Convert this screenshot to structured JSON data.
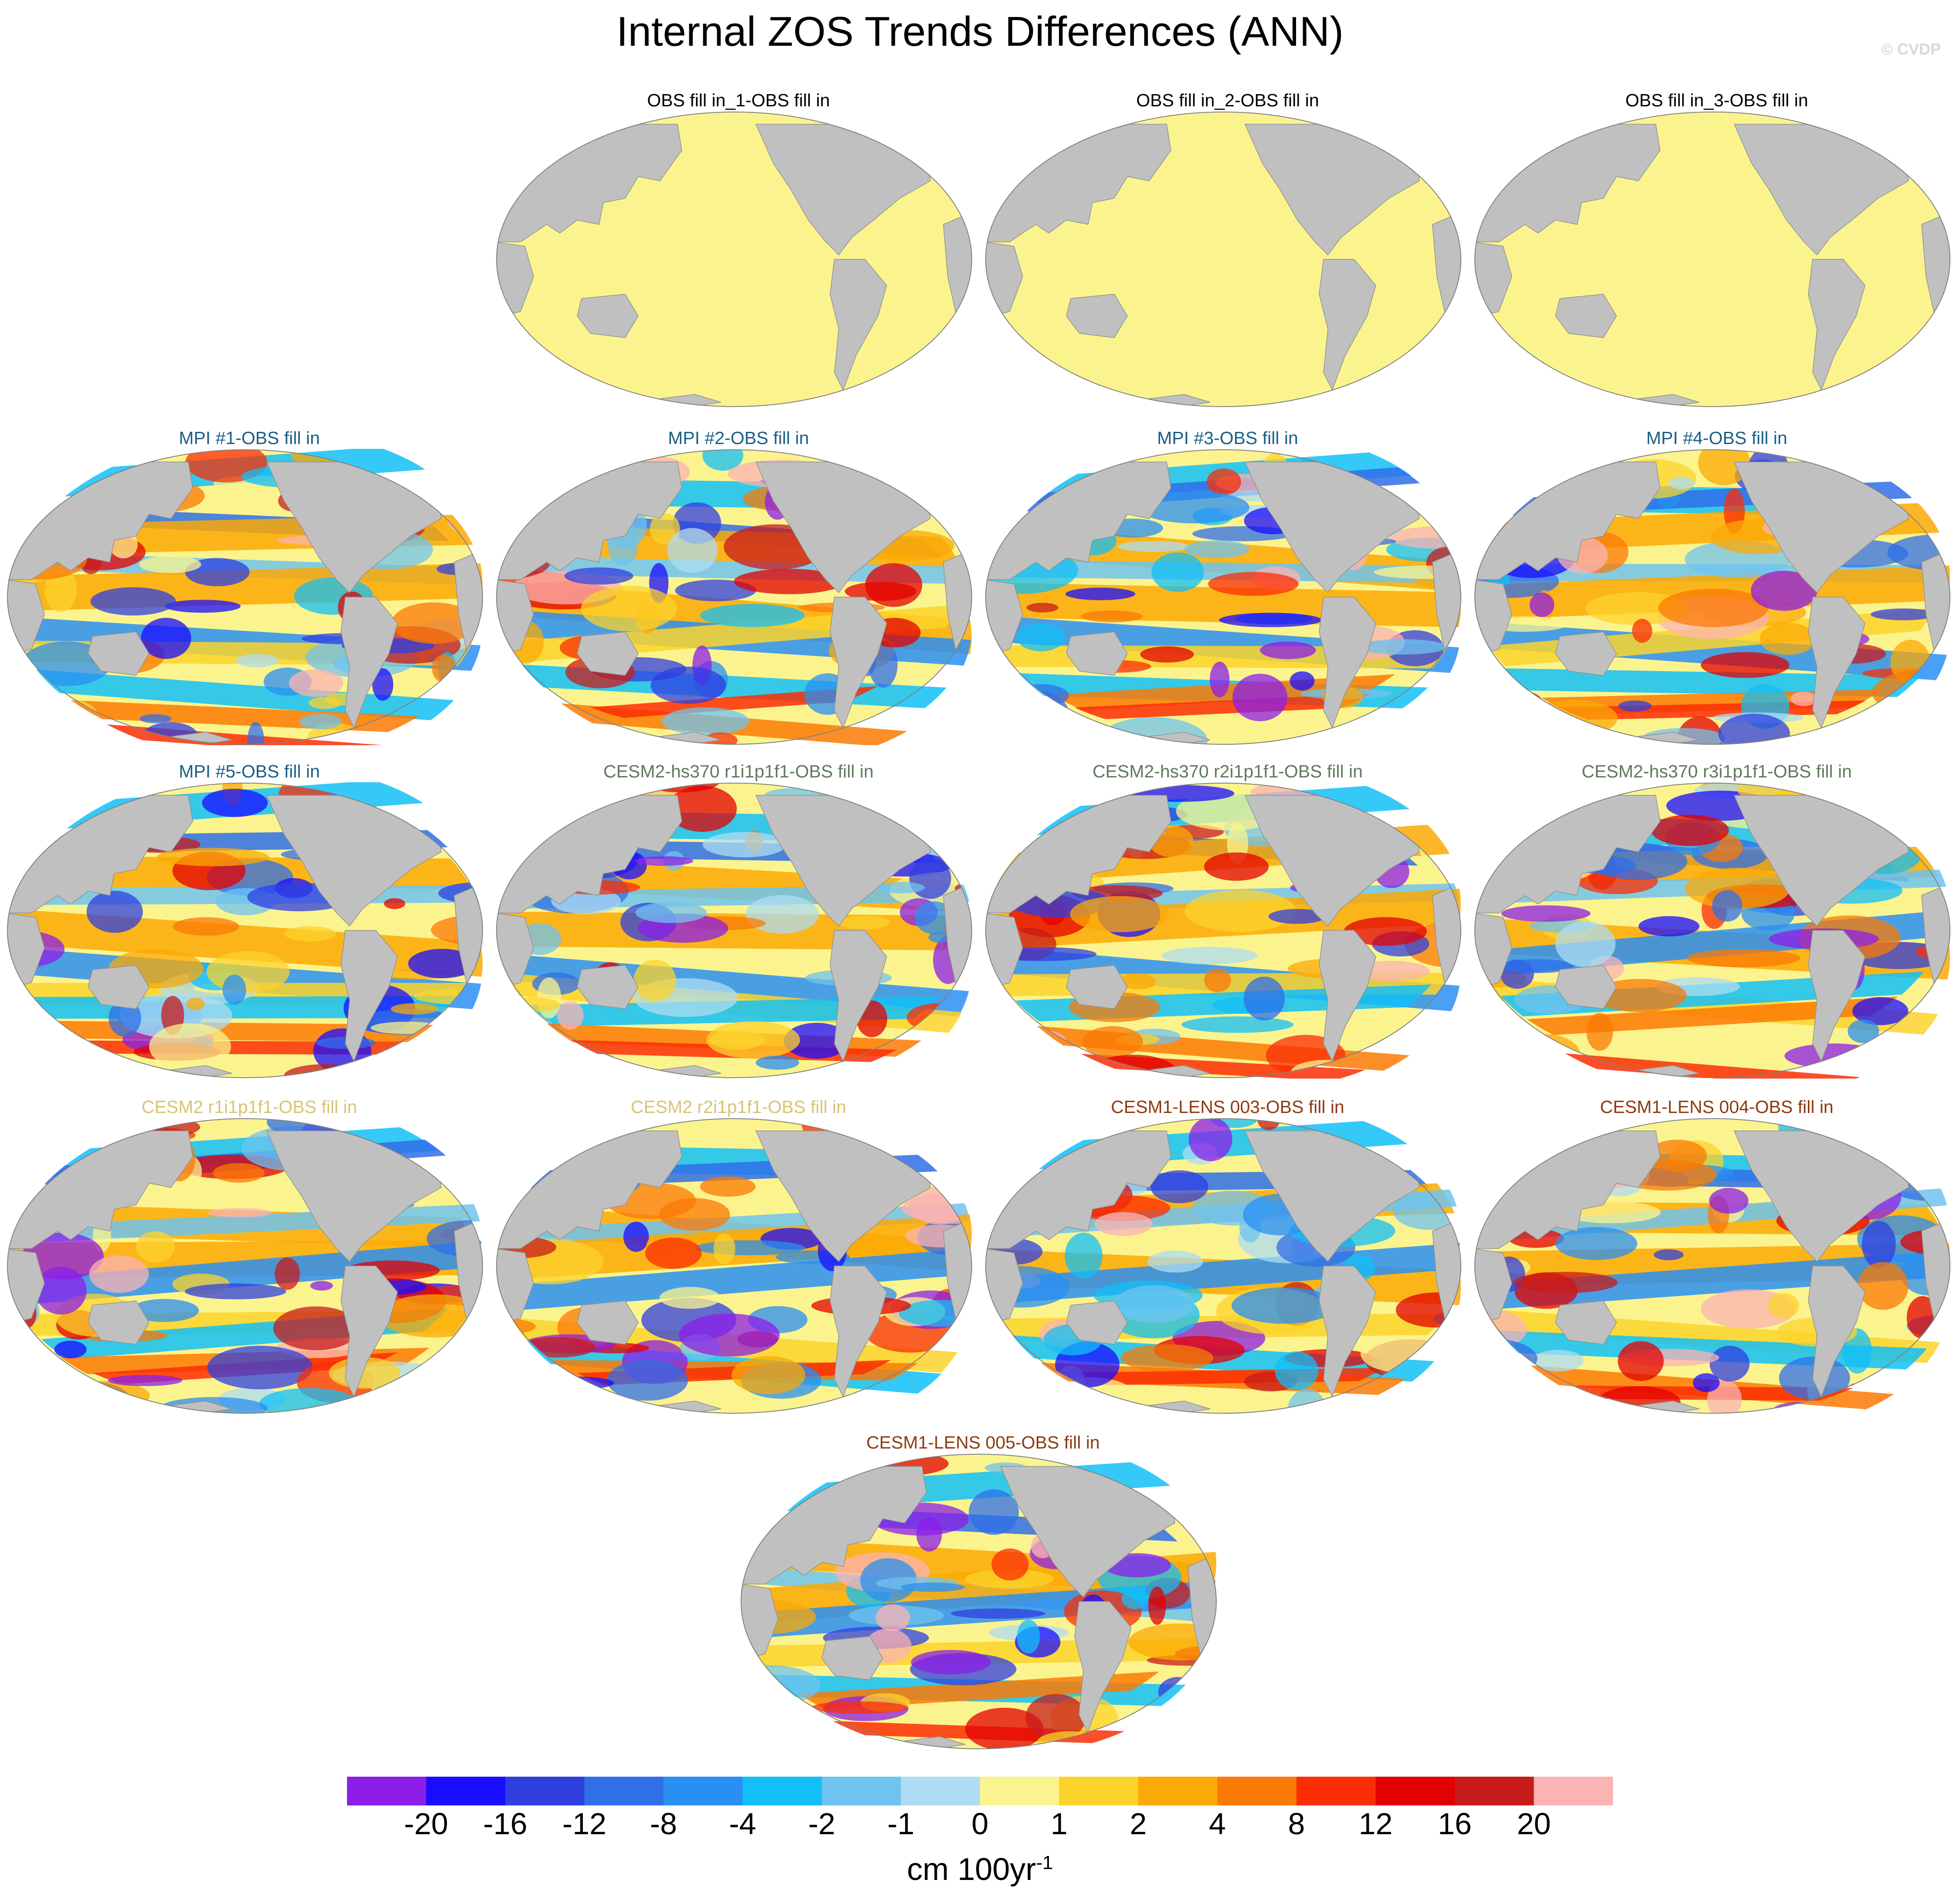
{
  "title": "Internal ZOS Trends Differences (ANN)",
  "copyright": "© CVDP",
  "colors": {
    "ocean_zero": "#fbf48e",
    "land": "#c0c0c0",
    "title_obs": "#000000",
    "title_mpi": "#1a5f86",
    "title_cesm2_hs370": "#5e7a5c",
    "title_cesm2": "#d9c373",
    "title_cesm1_lens": "#8e3a12"
  },
  "panels": [
    {
      "title": "OBS fill in_1-OBS fill in",
      "group": "obs"
    },
    {
      "title": "OBS fill in_2-OBS fill in",
      "group": "obs"
    },
    {
      "title": "OBS fill in_3-OBS fill in",
      "group": "obs"
    },
    {
      "title": "MPI #1-OBS fill in",
      "group": "mpi"
    },
    {
      "title": "MPI #2-OBS fill in",
      "group": "mpi"
    },
    {
      "title": "MPI #3-OBS fill in",
      "group": "mpi"
    },
    {
      "title": "MPI #4-OBS fill in",
      "group": "mpi"
    },
    {
      "title": "MPI #5-OBS fill in",
      "group": "mpi"
    },
    {
      "title": "CESM2-hs370 r1i1p1f1-OBS fill in",
      "group": "cesm2_hs370"
    },
    {
      "title": "CESM2-hs370 r2i1p1f1-OBS fill in",
      "group": "cesm2_hs370"
    },
    {
      "title": "CESM2-hs370 r3i1p1f1-OBS fill in",
      "group": "cesm2_hs370"
    },
    {
      "title": "CESM2 r1i1p1f1-OBS fill in",
      "group": "cesm2"
    },
    {
      "title": "CESM2 r2i1p1f1-OBS fill in",
      "group": "cesm2"
    },
    {
      "title": "CESM1-LENS 003-OBS fill in",
      "group": "cesm1_lens"
    },
    {
      "title": "CESM1-LENS 004-OBS fill in",
      "group": "cesm1_lens"
    },
    {
      "title": "CESM1-LENS 005-OBS fill in",
      "group": "cesm1_lens"
    }
  ],
  "colorbar": {
    "colors": [
      "#8c1ee8",
      "#1a0cff",
      "#2f3fe0",
      "#2f6fe8",
      "#2a8ff2",
      "#12bff7",
      "#6fc3ef",
      "#aedcf2",
      "#fbf48e",
      "#fcd32c",
      "#fba905",
      "#fb7a05",
      "#fb2e05",
      "#e30000",
      "#c81b1b",
      "#fbb3b3"
    ],
    "labels": [
      "-20",
      "-16",
      "-12",
      "-8",
      "-4",
      "-2",
      "-1",
      "0",
      "1",
      "2",
      "4",
      "8",
      "12",
      "16",
      "20"
    ],
    "units": "cm 100yr",
    "units_exp": "-1"
  }
}
